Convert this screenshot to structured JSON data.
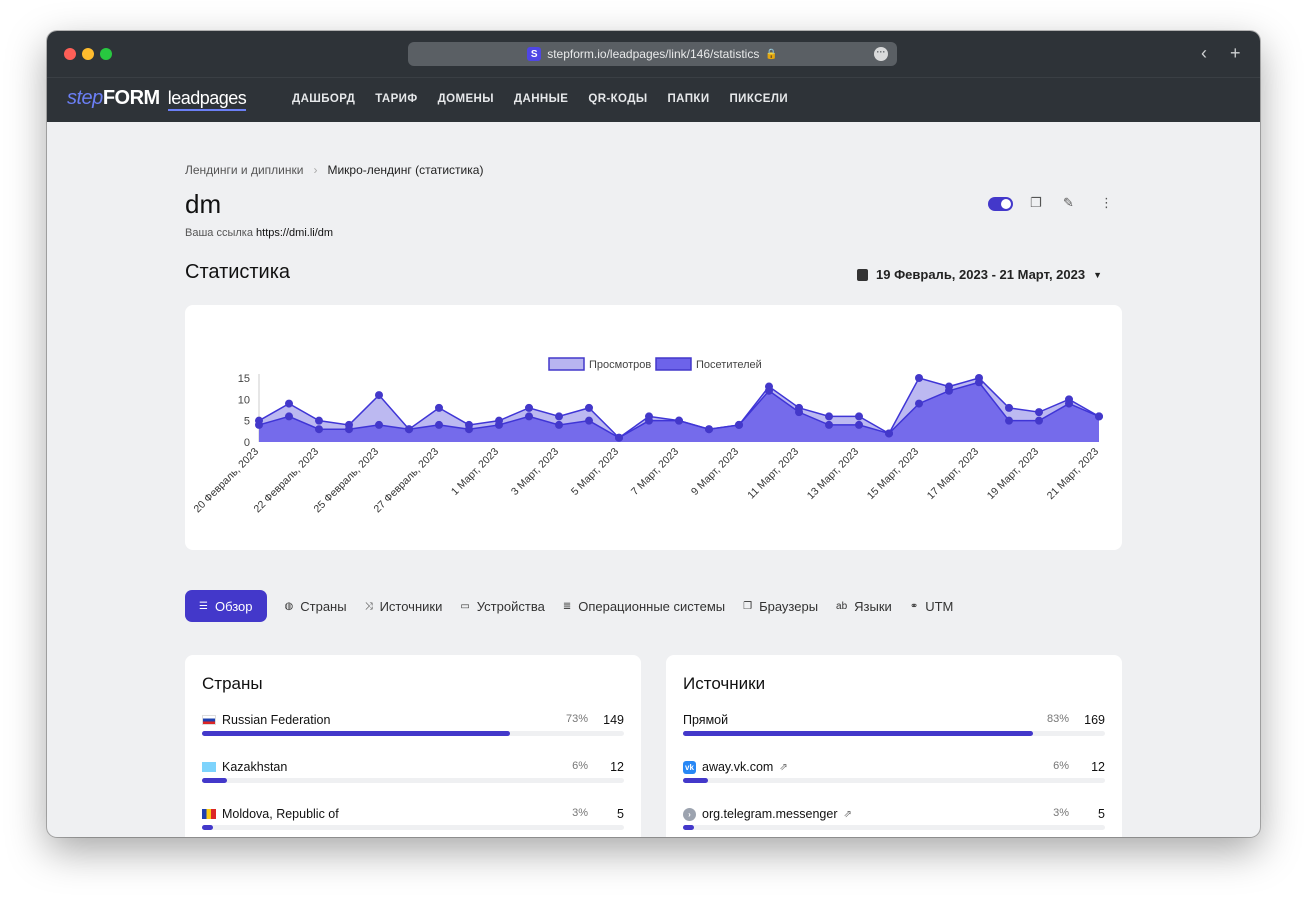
{
  "browser": {
    "url": "stepform.io/leadpages/link/146/statistics",
    "favicon_letter": "S"
  },
  "nav": {
    "logo_step": "step",
    "logo_form": "FORM",
    "logo_lp": "leadpages",
    "items": [
      "ДАШБОРД",
      "ТАРИФ",
      "ДОМЕНЫ",
      "ДАННЫЕ",
      "QR-КОДЫ",
      "ПАПКИ",
      "ПИКСЕЛИ"
    ]
  },
  "breadcrumb": {
    "parent": "Лендинги и диплинки",
    "current": "Микро-лендинг (статистика)"
  },
  "page": {
    "title": "dm",
    "link_label": "Ваша ссылка",
    "link_url": "https://dmi.li/dm"
  },
  "stats": {
    "title": "Статистика",
    "date_range": "19 Февраль, 2023 - 21 Март, 2023"
  },
  "colors": {
    "accent": "#4338ca",
    "views_fill": "#b8b5f0",
    "visitors_fill": "#6d63ea"
  },
  "chart_data": {
    "type": "area",
    "legend": "top-center",
    "ylim": [
      0,
      15
    ],
    "yticks": [
      "0",
      "5",
      "10",
      "15"
    ],
    "x": [
      "20 Февраль, 2023",
      "",
      "22 Февраль, 2023",
      "",
      "25 Февраль, 2023",
      "",
      "27 Февраль, 2023",
      "",
      "1 Март, 2023",
      "",
      "3 Март, 2023",
      "",
      "5 Март, 2023",
      "",
      "7 Март, 2023",
      "",
      "9 Март, 2023",
      "",
      "11 Март, 2023",
      "",
      "13 Март, 2023",
      "",
      "15 Март, 2023",
      "",
      "17 Март, 2023",
      "",
      "19 Март, 2023",
      "",
      "21 Март, 2023"
    ],
    "xticks": [
      "20 Февраль, 2023",
      "22 Февраль, 2023",
      "25 Февраль, 2023",
      "27 Февраль, 2023",
      "1 Март, 2023",
      "3 Март, 2023",
      "5 Март, 2023",
      "7 Март, 2023",
      "9 Март, 2023",
      "11 Март, 2023",
      "13 Март, 2023",
      "15 Март, 2023",
      "17 Март, 2023",
      "19 Март, 2023",
      "21 Март, 2023"
    ],
    "series": [
      {
        "name": "Просмотров",
        "values": [
          5,
          9,
          5,
          4,
          11,
          3,
          8,
          4,
          5,
          8,
          6,
          8,
          1,
          6,
          5,
          3,
          4,
          13,
          8,
          6,
          6,
          2,
          15,
          13,
          15,
          8,
          7,
          10,
          6
        ]
      },
      {
        "name": "Посетителей",
        "values": [
          4,
          6,
          3,
          3,
          4,
          3,
          4,
          3,
          4,
          6,
          4,
          5,
          1,
          5,
          5,
          3,
          4,
          12,
          7,
          4,
          4,
          2,
          9,
          12,
          14,
          5,
          5,
          9,
          6
        ]
      }
    ]
  },
  "tabs": [
    {
      "label": "Обзор",
      "icon": "list-icon",
      "glyph": "☰"
    },
    {
      "label": "Страны",
      "icon": "globe-icon",
      "glyph": "◍"
    },
    {
      "label": "Источники",
      "icon": "shuffle-icon",
      "glyph": "⤨"
    },
    {
      "label": "Устройства",
      "icon": "laptop-icon",
      "glyph": "▭"
    },
    {
      "label": "Операционные системы",
      "icon": "server-icon",
      "glyph": "≣"
    },
    {
      "label": "Браузеры",
      "icon": "copy-icon",
      "glyph": "❐"
    },
    {
      "label": "Языки",
      "icon": "language-icon",
      "glyph": "ab"
    },
    {
      "label": "UTM",
      "icon": "link-icon",
      "glyph": "⚭"
    }
  ],
  "countries": {
    "title": "Страны",
    "rows": [
      {
        "name": "Russian Federation",
        "pct": "73%",
        "count": "149",
        "share": 0.73
      },
      {
        "name": "Kazakhstan",
        "pct": "6%",
        "count": "12",
        "share": 0.06
      },
      {
        "name": "Moldova, Republic of",
        "pct": "3%",
        "count": "5",
        "share": 0.025
      }
    ]
  },
  "sources": {
    "title": "Источники",
    "rows": [
      {
        "name": "Прямой",
        "pct": "83%",
        "count": "169",
        "share": 0.83
      },
      {
        "name": "away.vk.com",
        "pct": "6%",
        "count": "12",
        "share": 0.06
      },
      {
        "name": "org.telegram.messenger",
        "pct": "3%",
        "count": "5",
        "share": 0.025
      }
    ]
  }
}
